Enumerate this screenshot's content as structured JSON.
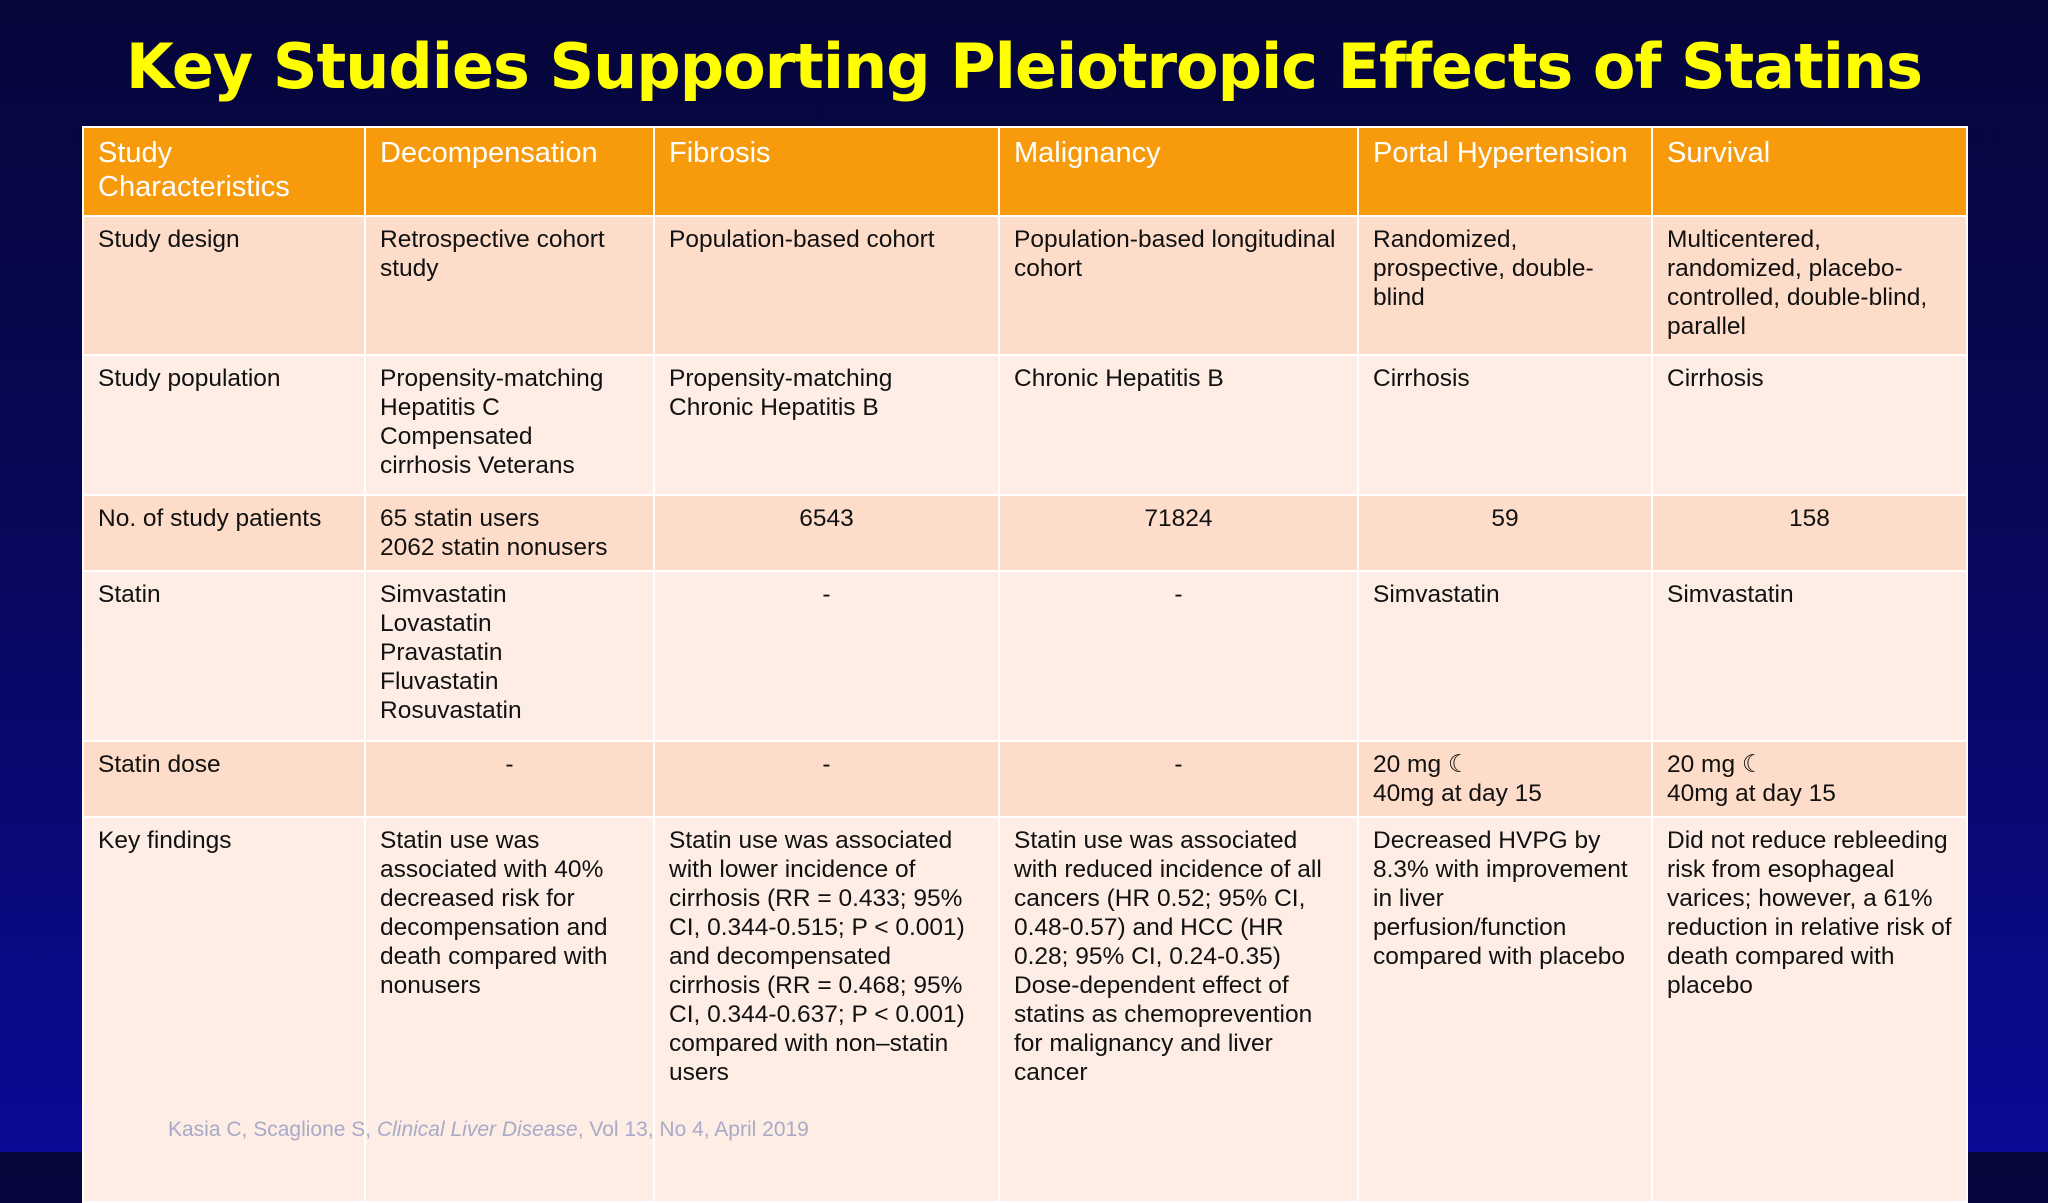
{
  "title": "Key Studies Supporting Pleiotropic Effects of Statins",
  "table": {
    "header": [
      "Study Characteristics",
      "Decompensation",
      "Fibrosis",
      "Malignancy",
      "Portal Hypertension",
      "Survival"
    ],
    "rows": [
      [
        "Study design",
        "Retrospective cohort study",
        "Population-based cohort",
        "Population-based longitudinal cohort",
        "Randomized, prospective, double-blind",
        "Multicentered, randomized, placebo-controlled, double-blind, parallel"
      ],
      [
        "Study population",
        [
          "Propensity-matching",
          "Hepatitis C",
          "Compensated",
          "cirrhosis Veterans"
        ],
        [
          "Propensity-matching",
          "Chronic Hepatitis B"
        ],
        "Chronic Hepatitis B",
        "Cirrhosis",
        "Cirrhosis"
      ],
      [
        "No. of study patients",
        [
          "65 statin users",
          "2062 statin nonusers"
        ],
        "6543",
        "71824",
        "59",
        "158"
      ],
      [
        "Statin",
        [
          "Simvastatin",
          "Lovastatin",
          "Pravastatin",
          "Fluvastatin",
          "Rosuvastatin"
        ],
        "-",
        "-",
        "Simvastatin",
        "Simvastatin"
      ],
      [
        "Statin dose",
        "-",
        "-",
        "-",
        [
          "20 mg ☾",
          "40mg at day 15"
        ],
        [
          "20 mg ☾",
          "40mg at day 15"
        ]
      ],
      [
        "Key findings",
        "Statin use was associated with 40% decreased risk for decompensation and death compared with nonusers",
        "Statin use was associated with lower incidence of cirrhosis (RR = 0.433; 95% CI, 0.344-0.515; P < 0.001) and decompensated cirrhosis (RR = 0.468; 95% CI, 0.344-0.637; P < 0.001) compared with non–statin users",
        "Statin use was associated with reduced incidence of all cancers (HR 0.52; 95% CI, 0.48-0.57) and HCC (HR 0.28; 95% CI, 0.24-0.35) Dose-dependent effect of statins as chemoprevention for malignancy and liver cancer",
        "Decreased HVPG by 8.3% with improvement in liver perfusion/function compared with placebo",
        "Did not reduce rebleeding risk from esophageal varices; however, a 61% reduction in relative risk of death compared with placebo"
      ]
    ]
  },
  "citation": {
    "authors": "Kasia C, Scaglione S,",
    "journal": "Clinical Liver Disease",
    "details": ", Vol 13, No 4, April 2019"
  }
}
